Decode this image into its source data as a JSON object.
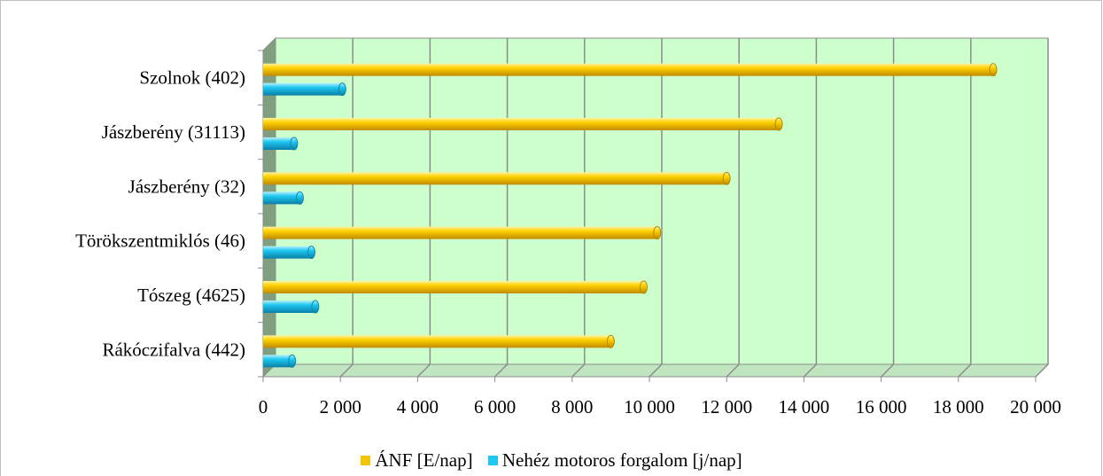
{
  "chart_data": {
    "type": "bar",
    "orientation": "horizontal",
    "categories": [
      "Szolnok (402)",
      "Jászberény (31113)",
      "Jászberény (32)",
      "Törökszentmiklós (46)",
      "Tószeg (4625)",
      "Rákóczifalva (442)"
    ],
    "series": [
      {
        "name": "ÁNF [E/nap]",
        "color": "#f5c400",
        "values": [
          18900,
          13350,
          12000,
          10200,
          9850,
          9000
        ]
      },
      {
        "name": "Nehéz motoros forgalom [j/nap]",
        "color": "#1ec8f0",
        "values": [
          2050,
          800,
          950,
          1250,
          1350,
          750
        ]
      }
    ],
    "xlim": [
      0,
      20000
    ],
    "xticks": [
      "0",
      "2 000",
      "4 000",
      "6 000",
      "8 000",
      "10 000",
      "12 000",
      "14 000",
      "16 000",
      "18 000",
      "20 000"
    ],
    "grid": true,
    "plot_background": "#ccffcc",
    "legend_position": "bottom"
  }
}
